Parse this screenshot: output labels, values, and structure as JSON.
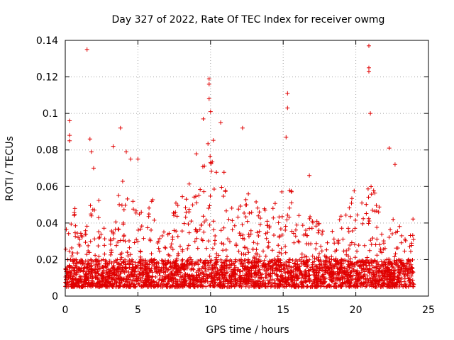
{
  "chart_data": {
    "type": "scatter",
    "title": "Day 327 of 2022, Rate Of TEC Index for receiver owmg",
    "xlabel": "GPS time / hours",
    "ylabel": "ROTI / TECUs",
    "xlim": [
      0,
      25
    ],
    "ylim": [
      0,
      0.14
    ],
    "xticks": [
      "0",
      "5",
      "10",
      "15",
      "20",
      "25"
    ],
    "yticks": [
      "0",
      "0.02",
      "0.04",
      "0.06",
      "0.08",
      "0.1",
      "0.12",
      "0.14"
    ],
    "grid": true,
    "marker": "+",
    "color": "#e00000",
    "series": [
      {
        "x_range": [
          0,
          24
        ],
        "baseline_range": [
          0.005,
          0.02
        ],
        "envelope_x": [
          0,
          0.5,
          1,
          1.5,
          2,
          2.5,
          3,
          3.5,
          4,
          4.5,
          5,
          5.5,
          6,
          6.5,
          7,
          7.5,
          8,
          8.5,
          9,
          9.5,
          10,
          10.5,
          11,
          11.5,
          12,
          12.5,
          13,
          13.5,
          14,
          14.5,
          15,
          15.5,
          16,
          16.5,
          17,
          17.5,
          18,
          18.5,
          19,
          19.5,
          20,
          20.5,
          21,
          21.5,
          22,
          22.5,
          23,
          23.5,
          24
        ],
        "envelope_y": [
          0.035,
          0.055,
          0.035,
          0.04,
          0.075,
          0.04,
          0.035,
          0.045,
          0.075,
          0.06,
          0.05,
          0.045,
          0.055,
          0.035,
          0.04,
          0.05,
          0.055,
          0.065,
          0.085,
          0.09,
          0.095,
          0.075,
          0.07,
          0.065,
          0.07,
          0.06,
          0.055,
          0.05,
          0.06,
          0.055,
          0.06,
          0.065,
          0.045,
          0.04,
          0.045,
          0.04,
          0.035,
          0.04,
          0.045,
          0.05,
          0.065,
          0.05,
          0.065,
          0.055,
          0.04,
          0.045,
          0.04,
          0.035,
          0.05
        ],
        "outliers": [
          {
            "x": 0.3,
            "y": 0.096
          },
          {
            "x": 0.3,
            "y": 0.088
          },
          {
            "x": 0.3,
            "y": 0.085
          },
          {
            "x": 1.5,
            "y": 0.135
          },
          {
            "x": 1.7,
            "y": 0.086
          },
          {
            "x": 1.8,
            "y": 0.079
          },
          {
            "x": 3.3,
            "y": 0.082
          },
          {
            "x": 3.8,
            "y": 0.092
          },
          {
            "x": 4.2,
            "y": 0.079
          },
          {
            "x": 4.5,
            "y": 0.075
          },
          {
            "x": 5.0,
            "y": 0.075
          },
          {
            "x": 9.5,
            "y": 0.097
          },
          {
            "x": 9.9,
            "y": 0.119
          },
          {
            "x": 9.9,
            "y": 0.116
          },
          {
            "x": 9.9,
            "y": 0.108
          },
          {
            "x": 10.0,
            "y": 0.101
          },
          {
            "x": 10.7,
            "y": 0.095
          },
          {
            "x": 12.2,
            "y": 0.092
          },
          {
            "x": 15.3,
            "y": 0.111
          },
          {
            "x": 15.3,
            "y": 0.103
          },
          {
            "x": 15.2,
            "y": 0.087
          },
          {
            "x": 16.8,
            "y": 0.066
          },
          {
            "x": 20.9,
            "y": 0.137
          },
          {
            "x": 20.9,
            "y": 0.125
          },
          {
            "x": 20.9,
            "y": 0.123
          },
          {
            "x": 21.0,
            "y": 0.1
          },
          {
            "x": 22.3,
            "y": 0.081
          },
          {
            "x": 22.7,
            "y": 0.072
          }
        ]
      }
    ]
  }
}
